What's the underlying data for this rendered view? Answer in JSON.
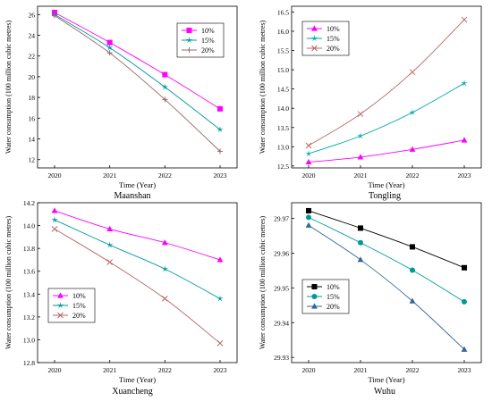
{
  "figure": {
    "background": "#ffffff"
  },
  "chart_data": [
    {
      "id": "maanshan",
      "type": "line",
      "title": "Maanshan",
      "xlabel": "Time (Year)",
      "ylabel": "Water consumption (100 million cubic metres)",
      "categories": [
        "2020",
        "2021",
        "2022",
        "2023"
      ],
      "ylim": [
        11.2,
        26.8
      ],
      "yticks": [
        12,
        14,
        16,
        18,
        20,
        22,
        24,
        26
      ],
      "ytick_labels": [
        "12",
        "14",
        "16",
        "18",
        "20",
        "22",
        "24",
        "26"
      ],
      "legend_position": "top-right",
      "series": [
        {
          "name": "10%",
          "marker": "square",
          "color": "#ff00ff",
          "values": [
            26.2,
            23.3,
            20.2,
            16.9
          ]
        },
        {
          "name": "15%",
          "marker": "star",
          "color": "#009999",
          "values": [
            26.0,
            22.8,
            19.0,
            14.9
          ]
        },
        {
          "name": "20%",
          "marker": "plus",
          "color": "#996666",
          "values": [
            25.9,
            22.3,
            17.8,
            12.8
          ]
        }
      ]
    },
    {
      "id": "tongling",
      "type": "line",
      "title": "Tongling",
      "xlabel": "Time (Year)",
      "ylabel": "Water consumption (100 million cubic metres)",
      "categories": [
        "2020",
        "2021",
        "2022",
        "2023"
      ],
      "ylim": [
        12.45,
        16.65
      ],
      "yticks": [
        12.5,
        13.0,
        13.5,
        14.0,
        14.5,
        15.0,
        15.5,
        16.0,
        16.5
      ],
      "ytick_labels": [
        "12.5",
        "13.0",
        "13.5",
        "14.0",
        "14.5",
        "15.0",
        "15.5",
        "16.0",
        "16.5"
      ],
      "legend_position": "top-left",
      "series": [
        {
          "name": "10%",
          "marker": "triangle",
          "color": "#ff00ff",
          "values": [
            12.6,
            12.73,
            12.93,
            13.17
          ]
        },
        {
          "name": "15%",
          "marker": "star",
          "color": "#00aaaa",
          "values": [
            12.82,
            13.28,
            13.89,
            14.65
          ]
        },
        {
          "name": "20%",
          "marker": "x",
          "color": "#bb6666",
          "values": [
            13.03,
            13.85,
            14.94,
            16.3
          ]
        }
      ]
    },
    {
      "id": "xuancheng",
      "type": "line",
      "title": "Xuancheng",
      "xlabel": "Time (Year)",
      "ylabel": "Water consumption (100 million cubic metres)",
      "categories": [
        "2020",
        "2021",
        "2022",
        "2023"
      ],
      "ylim": [
        12.8,
        14.2
      ],
      "yticks": [
        12.8,
        13.0,
        13.2,
        13.4,
        13.6,
        13.8,
        14.0,
        14.2
      ],
      "ytick_labels": [
        "12.8",
        "13.0",
        "13.2",
        "13.4",
        "13.6",
        "13.8",
        "14.0",
        "14.2"
      ],
      "legend_position": "bottom-left",
      "series": [
        {
          "name": "10%",
          "marker": "triangle",
          "color": "#ff00ff",
          "values": [
            14.13,
            13.97,
            13.85,
            13.7
          ]
        },
        {
          "name": "15%",
          "marker": "star",
          "color": "#009999",
          "values": [
            14.05,
            13.83,
            13.62,
            13.36
          ]
        },
        {
          "name": "20%",
          "marker": "x",
          "color": "#bb6666",
          "values": [
            13.97,
            13.68,
            13.36,
            12.97
          ]
        }
      ]
    },
    {
      "id": "wuhu",
      "type": "line",
      "title": "Wuhu",
      "xlabel": "Time (Year)",
      "ylabel": "Water consumption (100 million cubic metres)",
      "categories": [
        "2020",
        "2021",
        "2022",
        "2023"
      ],
      "ylim": [
        29.9285,
        29.9745
      ],
      "yticks": [
        29.93,
        29.94,
        29.95,
        29.96,
        29.97
      ],
      "ytick_labels": [
        "29.93",
        "29.94",
        "29.95",
        "29.96",
        "29.97"
      ],
      "legend_position": "bottom-left",
      "series": [
        {
          "name": "10%",
          "marker": "square",
          "color": "#000000",
          "values": [
            29.9722,
            29.9672,
            29.9618,
            29.9558
          ]
        },
        {
          "name": "15%",
          "marker": "circle",
          "color": "#009999",
          "values": [
            29.9703,
            29.963,
            29.9551,
            29.946
          ]
        },
        {
          "name": "20%",
          "marker": "triangle",
          "color": "#336699",
          "values": [
            29.968,
            29.9581,
            29.9462,
            29.9323
          ]
        }
      ]
    }
  ]
}
